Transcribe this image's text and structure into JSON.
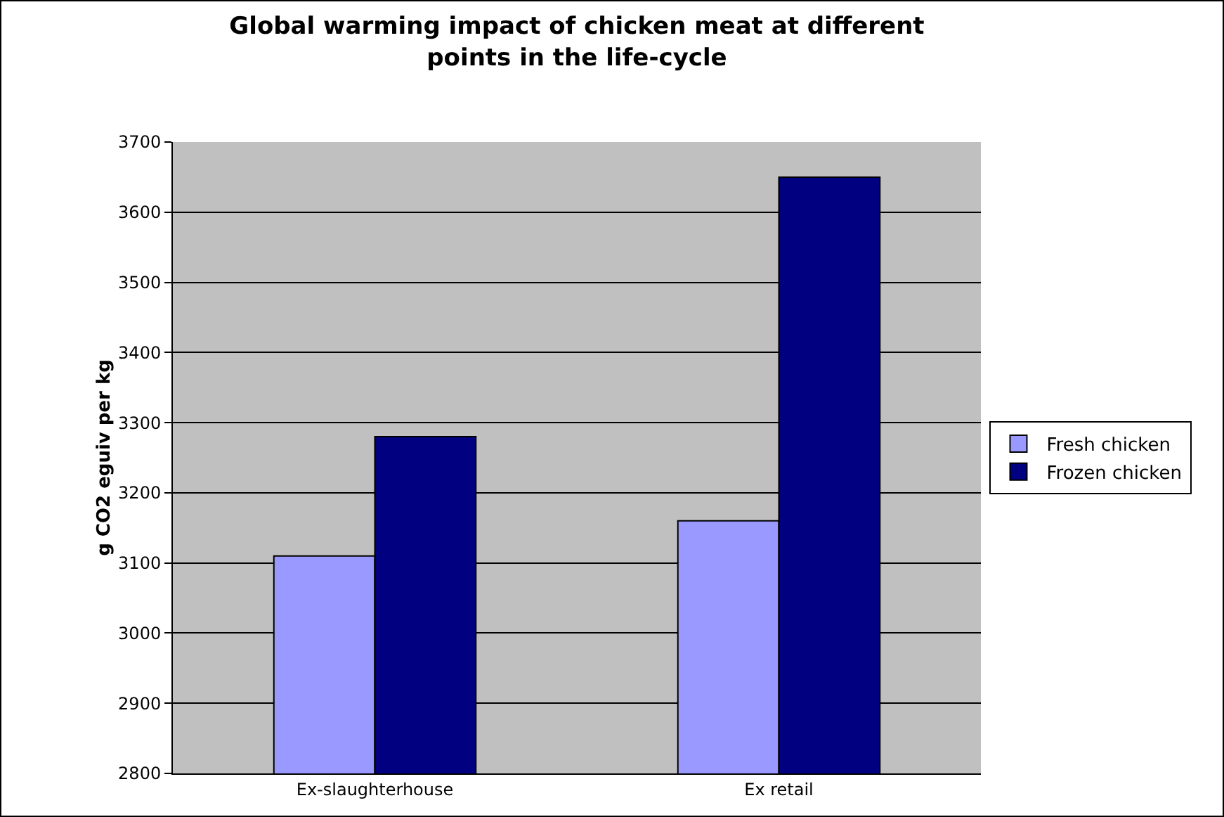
{
  "chart_data": {
    "type": "bar",
    "title": "Global warming impact of chicken meat at different\npoints in the life-cycle",
    "ylabel": "g CO2 eguiv per kg",
    "categories": [
      "Ex-slaughterhouse",
      "Ex retail"
    ],
    "series": [
      {
        "name": "Fresh chicken",
        "color": "#9999ff",
        "values": [
          3110,
          3160
        ]
      },
      {
        "name": "Frozen chicken",
        "color": "#000080",
        "values": [
          3280,
          3650
        ]
      }
    ],
    "ylim": [
      2800,
      3700
    ],
    "yticks": [
      2800,
      2900,
      3000,
      3100,
      3200,
      3300,
      3400,
      3500,
      3600,
      3700
    ],
    "grid": "y",
    "legend": "right"
  }
}
